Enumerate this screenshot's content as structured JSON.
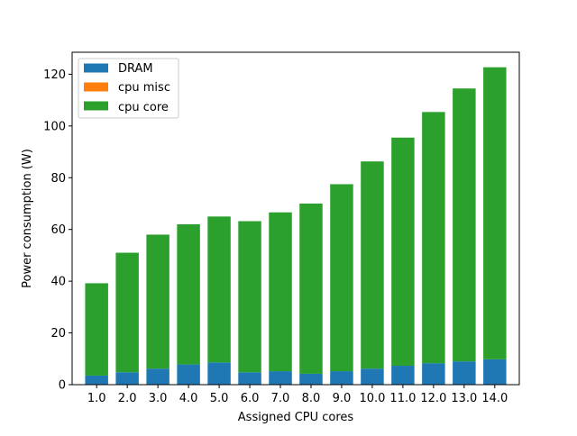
{
  "chart_data": {
    "type": "bar",
    "stacked": true,
    "title": "",
    "xlabel": "Assigned CPU cores",
    "ylabel": "Power consumption (W)",
    "categories": [
      "1.0",
      "2.0",
      "3.0",
      "4.0",
      "5.0",
      "6.0",
      "7.0",
      "8.0",
      "9.0",
      "10.0",
      "11.0",
      "12.0",
      "13.0",
      "14.0"
    ],
    "ylim": [
      0,
      128.5
    ],
    "yticks": [
      0,
      20,
      40,
      60,
      80,
      100,
      120
    ],
    "grid": false,
    "legend_position": "upper-left",
    "series": [
      {
        "name": "DRAM",
        "color": "#1f77b4",
        "values": [
          3.5,
          4.8,
          6.2,
          7.8,
          8.6,
          4.8,
          5.2,
          4.2,
          5.2,
          6.2,
          7.3,
          8.3,
          9.0,
          9.8
        ]
      },
      {
        "name": "cpu misc",
        "color": "#ff7f0e",
        "values": [
          0,
          0,
          0,
          0,
          0,
          0,
          0,
          0,
          0,
          0,
          0,
          0,
          0,
          0
        ]
      },
      {
        "name": "cpu core",
        "color": "#2ca02c",
        "values": [
          35.7,
          46.2,
          51.8,
          54.2,
          56.4,
          58.4,
          61.4,
          65.8,
          72.3,
          80.1,
          88.2,
          97.1,
          105.5,
          112.9
        ]
      }
    ]
  }
}
